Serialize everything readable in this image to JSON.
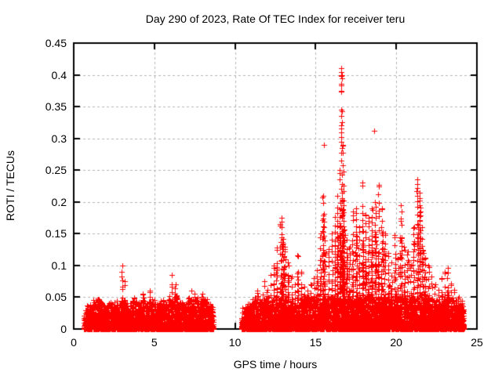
{
  "title": "Day 290 of 2023, Rate Of TEC Index for receiver teru",
  "axes": {
    "x": {
      "label": "GPS time / hours",
      "min": 0,
      "max": 25,
      "ticks": [
        0,
        5,
        10,
        15,
        20,
        25
      ],
      "tick_labels": [
        "0",
        "5",
        "10",
        "15",
        "20",
        "25"
      ]
    },
    "y": {
      "label": "ROTI / TECUs",
      "min": 0,
      "max": 0.45,
      "ticks": [
        0,
        0.05,
        0.1,
        0.15,
        0.2,
        0.25,
        0.3,
        0.35,
        0.4,
        0.45
      ],
      "tick_labels": [
        "0",
        "0.05",
        "0.1",
        "0.15",
        "0.2",
        "0.25",
        "0.3",
        "0.35",
        "0.4",
        "0.45"
      ]
    }
  },
  "style": {
    "marker": "plus",
    "marker_color": "#ff0000",
    "grid_color": "#b3b3b3",
    "axis_color": "#000000",
    "background": "#ffffff",
    "grid": "dashed, on every tick"
  },
  "chart_data": {
    "type": "scatter",
    "title": "Day 290 of 2023, Rate Of TEC Index for receiver teru",
    "xlabel": "GPS time / hours",
    "ylabel": "ROTI / TECUs",
    "xlim": [
      0,
      25
    ],
    "ylim": [
      0,
      0.45
    ],
    "series_name": "ROTI",
    "x_unit": "hours",
    "y_unit": "TECUs",
    "data_start_hour": 0.63,
    "data_end_hour": 24.2,
    "data_gap_hours": [
      8.66,
      10.4
    ],
    "baseline_band_tecu": [
      0,
      0.035
    ],
    "envelope_hour_maxroti": [
      [
        0.63,
        0.02
      ],
      [
        0.8,
        0.03
      ],
      [
        1.0,
        0.035
      ],
      [
        1.2,
        0.04
      ],
      [
        1.5,
        0.052
      ],
      [
        1.7,
        0.045
      ],
      [
        1.9,
        0.035
      ],
      [
        2.1,
        0.046
      ],
      [
        2.4,
        0.038
      ],
      [
        2.7,
        0.042
      ],
      [
        2.9,
        0.05
      ],
      [
        3.0,
        0.1
      ],
      [
        3.15,
        0.075
      ],
      [
        3.3,
        0.042
      ],
      [
        3.6,
        0.045
      ],
      [
        3.9,
        0.05
      ],
      [
        4.1,
        0.045
      ],
      [
        4.3,
        0.056
      ],
      [
        4.5,
        0.042
      ],
      [
        4.7,
        0.06
      ],
      [
        4.9,
        0.046
      ],
      [
        5.2,
        0.042
      ],
      [
        5.5,
        0.042
      ],
      [
        5.8,
        0.05
      ],
      [
        6.1,
        0.085
      ],
      [
        6.3,
        0.07
      ],
      [
        6.5,
        0.046
      ],
      [
        6.8,
        0.042
      ],
      [
        7.1,
        0.05
      ],
      [
        7.3,
        0.06
      ],
      [
        7.5,
        0.056
      ],
      [
        7.8,
        0.048
      ],
      [
        8.0,
        0.055
      ],
      [
        8.2,
        0.048
      ],
      [
        8.4,
        0.04
      ],
      [
        8.66,
        0.028
      ],
      [
        10.4,
        0.025
      ],
      [
        10.6,
        0.032
      ],
      [
        10.8,
        0.036
      ],
      [
        11.0,
        0.042
      ],
      [
        11.2,
        0.05
      ],
      [
        11.4,
        0.06
      ],
      [
        11.6,
        0.052
      ],
      [
        11.8,
        0.075
      ],
      [
        12.0,
        0.062
      ],
      [
        12.2,
        0.085
      ],
      [
        12.4,
        0.1
      ],
      [
        12.6,
        0.128
      ],
      [
        12.8,
        0.165
      ],
      [
        12.9,
        0.175
      ],
      [
        13.0,
        0.142
      ],
      [
        13.1,
        0.13
      ],
      [
        13.3,
        0.105
      ],
      [
        13.5,
        0.082
      ],
      [
        13.7,
        0.07
      ],
      [
        13.9,
        0.115
      ],
      [
        14.1,
        0.09
      ],
      [
        14.3,
        0.066
      ],
      [
        14.5,
        0.06
      ],
      [
        14.7,
        0.07
      ],
      [
        14.9,
        0.08
      ],
      [
        15.1,
        0.092
      ],
      [
        15.3,
        0.15
      ],
      [
        15.45,
        0.21
      ],
      [
        15.6,
        0.12
      ],
      [
        15.8,
        0.126
      ],
      [
        16.0,
        0.15
      ],
      [
        16.2,
        0.176
      ],
      [
        16.35,
        0.21
      ],
      [
        16.5,
        0.25
      ],
      [
        16.6,
        0.32
      ],
      [
        16.7,
        0.29
      ],
      [
        16.8,
        0.156
      ],
      [
        16.95,
        0.14
      ],
      [
        17.1,
        0.13
      ],
      [
        17.3,
        0.185
      ],
      [
        17.5,
        0.19
      ],
      [
        17.7,
        0.16
      ],
      [
        17.9,
        0.23
      ],
      [
        18.1,
        0.18
      ],
      [
        18.3,
        0.175
      ],
      [
        18.5,
        0.19
      ],
      [
        18.7,
        0.2
      ],
      [
        18.9,
        0.225
      ],
      [
        19.1,
        0.19
      ],
      [
        19.3,
        0.15
      ],
      [
        19.5,
        0.12
      ],
      [
        19.7,
        0.105
      ],
      [
        19.9,
        0.148
      ],
      [
        20.1,
        0.11
      ],
      [
        20.3,
        0.195
      ],
      [
        20.5,
        0.13
      ],
      [
        20.7,
        0.122
      ],
      [
        20.9,
        0.1
      ],
      [
        21.1,
        0.16
      ],
      [
        21.3,
        0.235
      ],
      [
        21.45,
        0.215
      ],
      [
        21.6,
        0.16
      ],
      [
        21.8,
        0.112
      ],
      [
        22.0,
        0.1
      ],
      [
        22.2,
        0.082
      ],
      [
        22.4,
        0.07
      ],
      [
        22.6,
        0.062
      ],
      [
        22.8,
        0.08
      ],
      [
        23.0,
        0.09
      ],
      [
        23.2,
        0.096
      ],
      [
        23.4,
        0.072
      ],
      [
        23.6,
        0.062
      ],
      [
        23.8,
        0.052
      ],
      [
        24.0,
        0.046
      ],
      [
        24.2,
        0.03
      ]
    ],
    "peak_points_hour_roti": [
      [
        16.58,
        0.41
      ],
      [
        16.6,
        0.405
      ],
      [
        16.57,
        0.4
      ],
      [
        16.61,
        0.4
      ],
      [
        16.59,
        0.398
      ],
      [
        16.62,
        0.395
      ],
      [
        16.58,
        0.386
      ],
      [
        16.6,
        0.384
      ],
      [
        16.57,
        0.375
      ],
      [
        16.6,
        0.373
      ],
      [
        16.59,
        0.345
      ],
      [
        16.62,
        0.343
      ],
      [
        16.58,
        0.335
      ],
      [
        16.61,
        0.325
      ],
      [
        16.59,
        0.302
      ],
      [
        16.63,
        0.285
      ],
      [
        15.52,
        0.29
      ],
      [
        18.63,
        0.312
      ]
    ],
    "notable_peaks": [
      {
        "hour": 16.6,
        "roti": 0.41
      },
      {
        "hour": 18.63,
        "roti": 0.312
      },
      {
        "hour": 15.52,
        "roti": 0.29
      },
      {
        "hour": 16.5,
        "roti": 0.25
      },
      {
        "hour": 21.3,
        "roti": 0.235
      },
      {
        "hour": 17.9,
        "roti": 0.23
      },
      {
        "hour": 18.9,
        "roti": 0.225
      },
      {
        "hour": 12.9,
        "roti": 0.175
      },
      {
        "hour": 3.0,
        "roti": 0.1
      },
      {
        "hour": 6.1,
        "roti": 0.085
      }
    ]
  }
}
